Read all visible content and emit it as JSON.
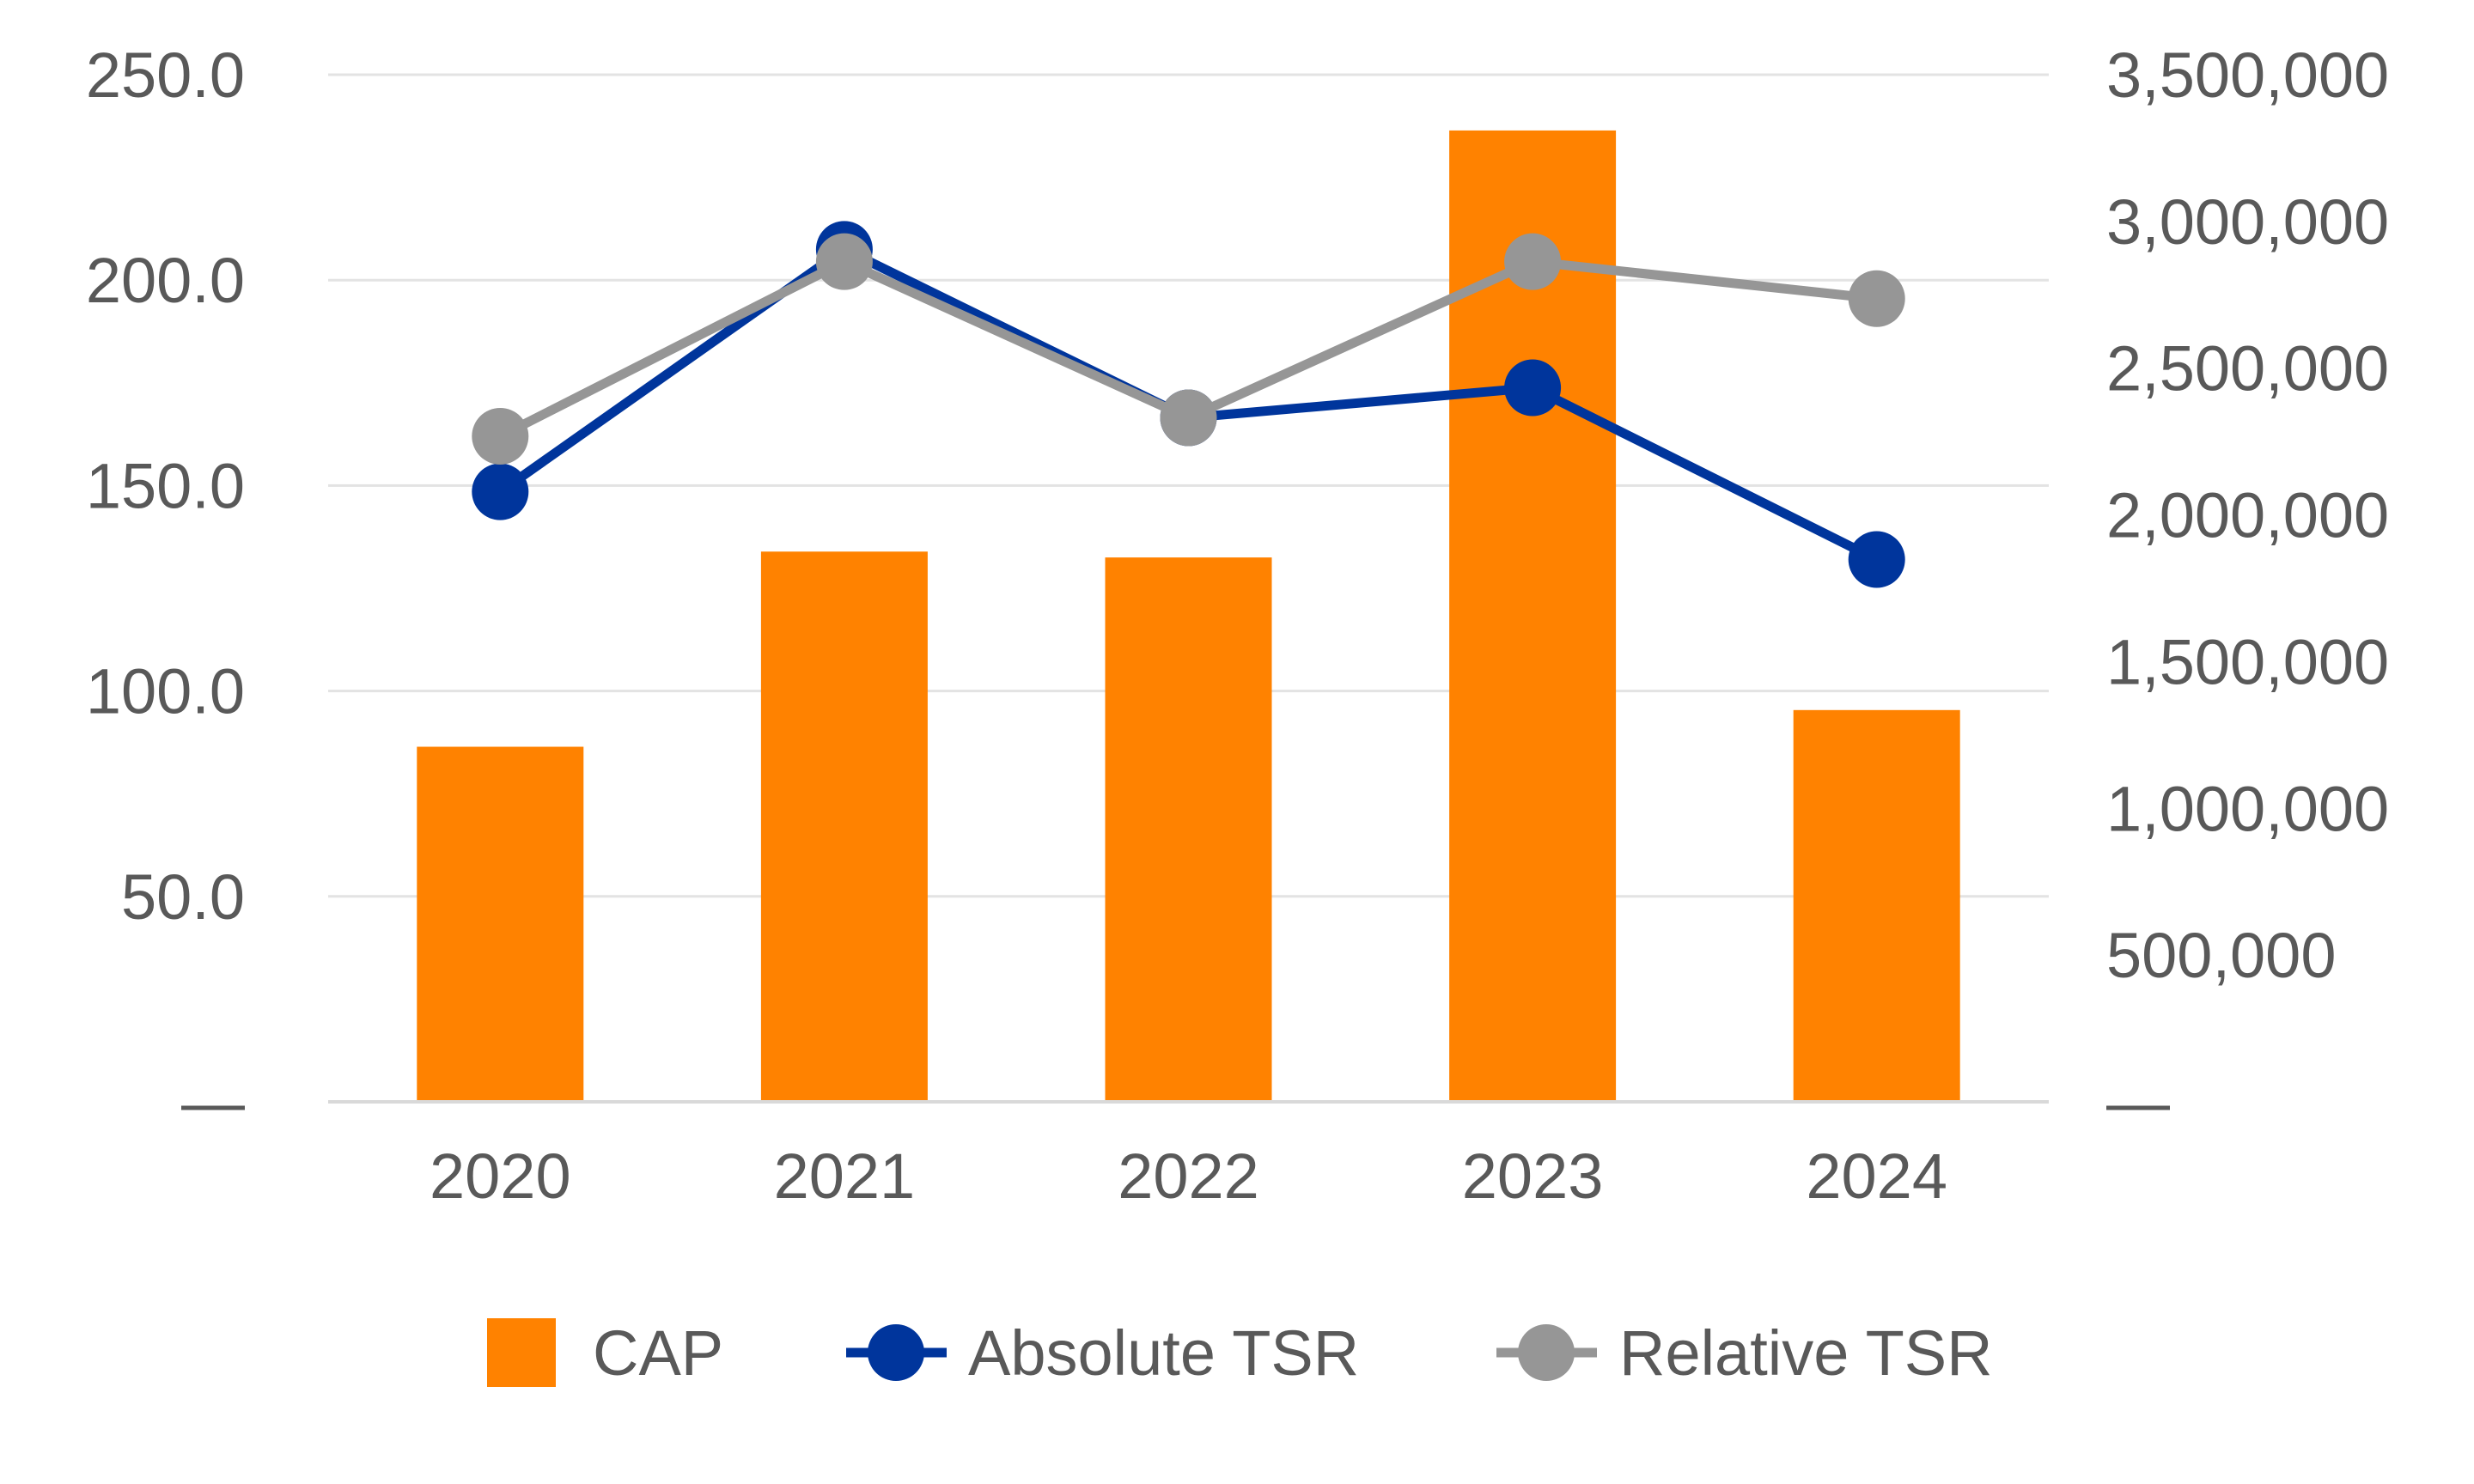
{
  "chart_data": {
    "type": "bar",
    "title": "",
    "categories": [
      "2020",
      "2021",
      "2022",
      "2023",
      "2024"
    ],
    "series": [
      {
        "name": "CAP",
        "type": "bar",
        "axis": "right",
        "color": "#FF8200",
        "values": [
          1210000,
          1875000,
          1855000,
          3310000,
          1335000
        ]
      },
      {
        "name": "Absolute TSR",
        "type": "line",
        "axis": "left",
        "color": "#00359C",
        "values": [
          148.5,
          207.5,
          166.5,
          173.8,
          132.0
        ]
      },
      {
        "name": "Relative TSR",
        "type": "line",
        "axis": "left",
        "color": "#969696",
        "values": [
          162.0,
          204.5,
          166.5,
          204.5,
          195.5
        ]
      }
    ],
    "left_axis": {
      "min": 0,
      "max": 250,
      "ticks": [
        0,
        50,
        100,
        150,
        200,
        250
      ],
      "tick_labels": [
        "—",
        "50.0",
        "100.0",
        "150.0",
        "200.0",
        "250.0"
      ]
    },
    "right_axis": {
      "min": 0,
      "max": 3500000,
      "ticks": [
        0,
        500000,
        1000000,
        1500000,
        2000000,
        2500000,
        3000000,
        3500000
      ],
      "tick_labels": [
        "—",
        "500,000",
        "1,000,000",
        "1,500,000",
        "2,000,000",
        "2,500,000",
        "3,000,000",
        "3,500,000"
      ]
    },
    "grid": true,
    "legend": "bottom",
    "legend_entries": [
      "CAP",
      "Absolute TSR",
      "Relative TSR"
    ]
  }
}
